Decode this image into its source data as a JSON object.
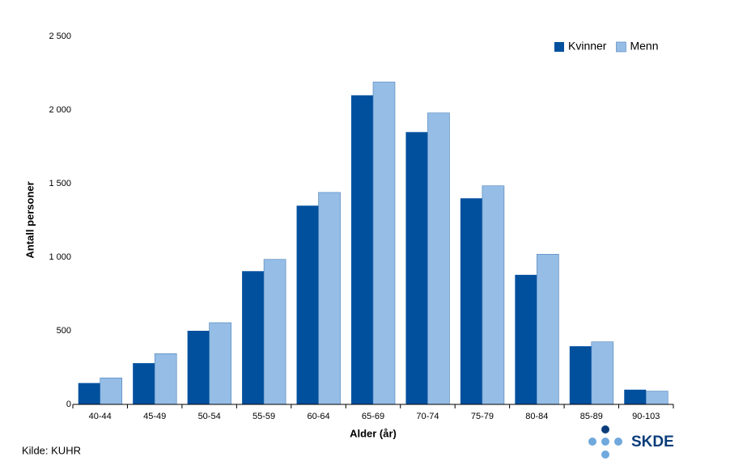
{
  "chart_data": {
    "type": "bar",
    "x_label": "Alder (år)",
    "y_label": "Antall personer",
    "categories": [
      "40-44",
      "45-49",
      "50-54",
      "55-59",
      "60-64",
      "65-69",
      "70-74",
      "75-79",
      "80-84",
      "85-89",
      "90-103"
    ],
    "series": [
      {
        "name": "Kvinner",
        "color": "#00509e",
        "values": [
          145,
          280,
          500,
          905,
          1350,
          2100,
          1850,
          1400,
          880,
          395,
          100
        ]
      },
      {
        "name": "Menn",
        "color": "#95bde6",
        "values": [
          180,
          345,
          555,
          985,
          1440,
          2190,
          1980,
          1485,
          1020,
          425,
          90
        ]
      }
    ],
    "ylim": [
      0,
      2500
    ],
    "yticks": [
      0,
      500,
      {
        "value": 1000,
        "label": "1 000"
      },
      {
        "value": 1500,
        "label": "1 500"
      },
      {
        "value": 2000,
        "label": "2 000"
      },
      {
        "value": 2500,
        "label": "2 500"
      }
    ],
    "grid": false,
    "legend": "top-right",
    "source": "Kilde: KUHR",
    "logo": "SKDE"
  }
}
